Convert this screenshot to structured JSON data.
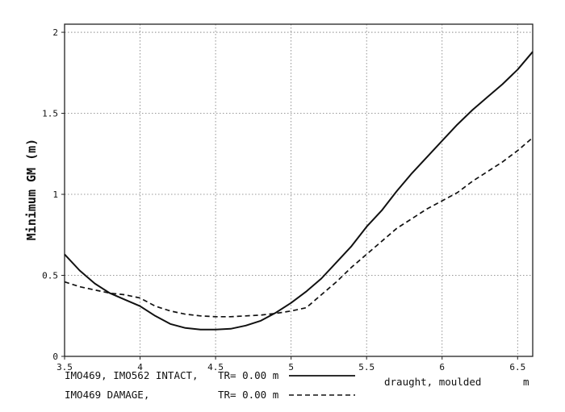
{
  "chart_data": {
    "type": "line",
    "title": "",
    "xlabel": "draught, moulded",
    "xunit": "m",
    "ylabel": "Minimum GM (m)",
    "xlim": [
      3.5,
      6.6
    ],
    "ylim": [
      0,
      2.05
    ],
    "xticks": [
      3.5,
      4,
      4.5,
      5,
      5.5,
      6,
      6.5
    ],
    "xtick_labels": [
      "3.5",
      "4",
      "4.5",
      "5",
      "5.5",
      "6",
      "6.5"
    ],
    "yticks": [
      0,
      0.5,
      1,
      1.5,
      2
    ],
    "ytick_labels": [
      "0",
      "0.5",
      "1",
      "1.5",
      "2"
    ],
    "grid": true,
    "series": [
      {
        "name": "IMO469, IMO562 INTACT,",
        "tr_label": "TR= 0.00 m",
        "style": "solid",
        "x": [
          3.5,
          3.6,
          3.7,
          3.8,
          3.9,
          4.0,
          4.1,
          4.2,
          4.3,
          4.4,
          4.5,
          4.6,
          4.7,
          4.8,
          4.9,
          5.0,
          5.1,
          5.2,
          5.3,
          5.4,
          5.5,
          5.6,
          5.7,
          5.8,
          5.9,
          6.0,
          6.1,
          6.2,
          6.3,
          6.4,
          6.5,
          6.6
        ],
        "y": [
          0.63,
          0.53,
          0.45,
          0.39,
          0.35,
          0.31,
          0.25,
          0.2,
          0.175,
          0.165,
          0.165,
          0.17,
          0.19,
          0.22,
          0.27,
          0.33,
          0.4,
          0.48,
          0.58,
          0.68,
          0.8,
          0.9,
          1.02,
          1.13,
          1.23,
          1.33,
          1.43,
          1.52,
          1.6,
          1.68,
          1.77,
          1.88
        ]
      },
      {
        "name": "IMO469 DAMAGE,",
        "tr_label": "TR= 0.00 m",
        "style": "dashed",
        "x": [
          3.5,
          3.6,
          3.7,
          3.8,
          3.9,
          4.0,
          4.1,
          4.2,
          4.3,
          4.4,
          4.5,
          4.6,
          4.7,
          4.8,
          4.9,
          5.0,
          5.1,
          5.2,
          5.3,
          5.4,
          5.5,
          5.6,
          5.7,
          5.8,
          5.9,
          6.0,
          6.1,
          6.2,
          6.3,
          6.4,
          6.5,
          6.6
        ],
        "y": [
          0.46,
          0.43,
          0.41,
          0.39,
          0.38,
          0.36,
          0.31,
          0.28,
          0.26,
          0.25,
          0.245,
          0.245,
          0.25,
          0.255,
          0.265,
          0.28,
          0.3,
          0.38,
          0.46,
          0.55,
          0.63,
          0.71,
          0.79,
          0.85,
          0.91,
          0.96,
          1.01,
          1.08,
          1.14,
          1.2,
          1.27,
          1.35
        ]
      }
    ]
  }
}
